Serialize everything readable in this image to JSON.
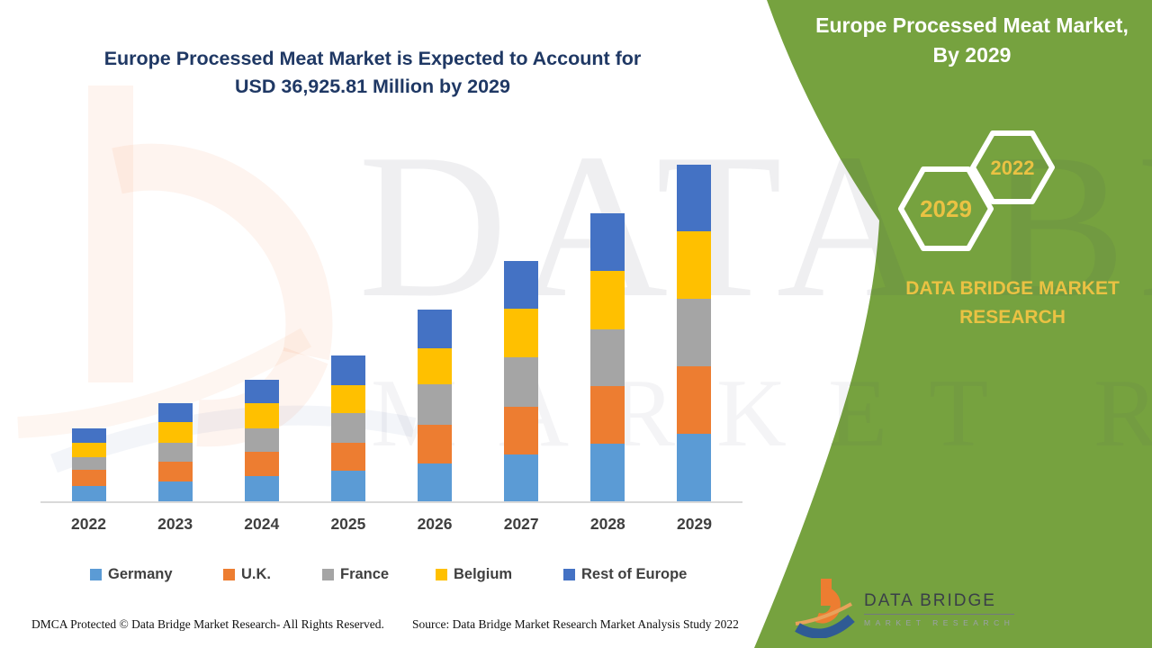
{
  "title": {
    "line1": "Europe Processed Meat Market is Expected to Account for",
    "line2": "USD 36,925.81 Million by 2029",
    "color": "#1F3864"
  },
  "side_panel": {
    "panel_color": "#76A23F",
    "heading_line1": "Europe Processed Meat Market,",
    "heading_line2": "By 2029",
    "hexagons": [
      {
        "label": "2029"
      },
      {
        "label": "2022"
      }
    ],
    "brand_line1": "DATA BRIDGE MARKET",
    "brand_line2": "RESEARCH",
    "accent_text_color": "#EAC243"
  },
  "chart_data": {
    "type": "bar",
    "stacked": true,
    "title": "Europe Processed Meat Market is Expected to Account for USD 36,925.81 Million by 2029",
    "xlabel": "",
    "ylabel": "",
    "unit": "USD Million",
    "values_estimated": true,
    "axis": {
      "y_axis_shown": false,
      "grid": false
    },
    "legend_position": "bottom",
    "categories": [
      "2022",
      "2023",
      "2024",
      "2025",
      "2026",
      "2027",
      "2028",
      "2029"
    ],
    "series": [
      {
        "name": "Germany",
        "color": "#5B9BD5",
        "values": [
          1650,
          2140,
          2730,
          3380,
          4170,
          5130,
          6310,
          7400
        ]
      },
      {
        "name": "U.K.",
        "color": "#ED7D31",
        "values": [
          1780,
          2240,
          2690,
          3030,
          4270,
          5260,
          6310,
          7400
        ]
      },
      {
        "name": "France",
        "color": "#A5A5A5",
        "values": [
          1450,
          2040,
          2630,
          3230,
          4380,
          5400,
          6220,
          7400
        ]
      },
      {
        "name": "Belgium",
        "color": "#FFC000",
        "values": [
          1580,
          2240,
          2690,
          3120,
          3950,
          5290,
          6440,
          7370
        ]
      },
      {
        "name": "Rest of Europe",
        "color": "#4472C4",
        "values": [
          1580,
          2070,
          2630,
          3290,
          4300,
          5230,
          6280,
          7355.81
        ]
      }
    ],
    "totals": [
      8040,
      10730,
      13370,
      16050,
      21070,
      26310,
      31560,
      36925.81
    ]
  },
  "watermark": {
    "line1": "DATA BRIDGE",
    "line2": "MARKET RESEARCH"
  },
  "footer": {
    "dmca": "DMCA Protected © Data Bridge Market Research- All Rights Reserved.",
    "source": "Source: Data Bridge Market Research Market Analysis Study 2022"
  },
  "logo": {
    "name": "DATA BRIDGE",
    "subtitle": "MARKET RESEARCH"
  }
}
